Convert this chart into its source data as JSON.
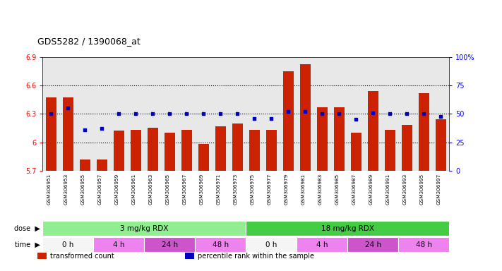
{
  "title": "GDS5282 / 1390068_at",
  "samples": [
    "GSM306951",
    "GSM306953",
    "GSM306955",
    "GSM306957",
    "GSM306959",
    "GSM306961",
    "GSM306963",
    "GSM306965",
    "GSM306967",
    "GSM306969",
    "GSM306971",
    "GSM306973",
    "GSM306975",
    "GSM306977",
    "GSM306979",
    "GSM306981",
    "GSM306983",
    "GSM306985",
    "GSM306987",
    "GSM306989",
    "GSM306991",
    "GSM306993",
    "GSM306995",
    "GSM306997"
  ],
  "transformed_count": [
    6.47,
    6.47,
    5.82,
    5.82,
    6.12,
    6.13,
    6.15,
    6.1,
    6.13,
    5.98,
    6.17,
    6.2,
    6.13,
    6.13,
    6.75,
    6.82,
    6.37,
    6.37,
    6.1,
    6.54,
    6.13,
    6.18,
    6.52,
    6.24
  ],
  "percentile_rank": [
    50,
    55,
    36,
    37,
    50,
    50,
    50,
    50,
    50,
    50,
    50,
    50,
    46,
    46,
    52,
    52,
    50,
    50,
    45,
    51,
    50,
    50,
    50,
    48
  ],
  "ylim_left": [
    5.7,
    6.9
  ],
  "ylim_right": [
    0,
    100
  ],
  "yticks_left": [
    5.7,
    6.0,
    6.3,
    6.6,
    6.9
  ],
  "ytick_labels_left": [
    "5.7",
    "6",
    "6.3",
    "6.6",
    "6.9"
  ],
  "yticks_right": [
    0,
    25,
    50,
    75,
    100
  ],
  "ytick_labels_right": [
    "0",
    "25",
    "50",
    "75",
    "100%"
  ],
  "bar_color": "#CC2200",
  "dot_color": "#0000BB",
  "plot_bg_color": "#E8E8E8",
  "xtick_bg_color": "#D8D8D8",
  "dose_color_1": "#90EE90",
  "dose_color_2": "#44CC44",
  "dose_groups": [
    {
      "label": "3 mg/kg RDX",
      "start": 0,
      "end": 12
    },
    {
      "label": "18 mg/kg RDX",
      "start": 12,
      "end": 24
    }
  ],
  "time_groups": [
    {
      "label": "0 h",
      "start": 0,
      "end": 3
    },
    {
      "label": "4 h",
      "start": 3,
      "end": 6
    },
    {
      "label": "24 h",
      "start": 6,
      "end": 9
    },
    {
      "label": "48 h",
      "start": 9,
      "end": 12
    },
    {
      "label": "0 h",
      "start": 12,
      "end": 15
    },
    {
      "label": "4 h",
      "start": 15,
      "end": 18
    },
    {
      "label": "24 h",
      "start": 18,
      "end": 21
    },
    {
      "label": "48 h",
      "start": 21,
      "end": 24
    }
  ],
  "time_colors": [
    "#F5F5F5",
    "#EE82EE",
    "#CC55CC",
    "#EE82EE",
    "#F5F5F5",
    "#EE82EE",
    "#CC55CC",
    "#EE82EE"
  ],
  "legend_items": [
    {
      "label": "transformed count",
      "color": "#CC2200"
    },
    {
      "label": "percentile rank within the sample",
      "color": "#0000BB"
    }
  ]
}
